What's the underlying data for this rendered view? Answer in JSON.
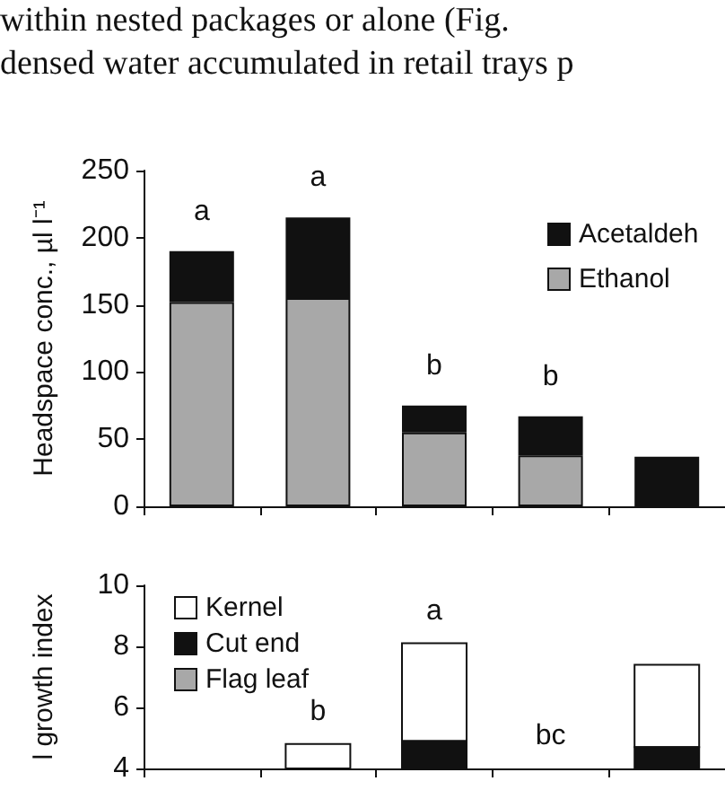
{
  "chart_data": [
    {
      "type": "bar",
      "stacked": true,
      "ylabel": "Headspace conc., µl l⁻¹",
      "categories": [
        null,
        null,
        null,
        null,
        null
      ],
      "ylim": [
        0,
        250
      ],
      "yticks": [
        0,
        50,
        100,
        150,
        200,
        250
      ],
      "tick_labels": "y",
      "grid": false,
      "legend": "top right",
      "annotations": [
        "within nested packages or alone (Fig.",
        "densed water accumulated in retail trays p"
      ],
      "series": [
        {
          "name": "Ethanol",
          "color": "#a8a8a8",
          "values": [
            152,
            155,
            55,
            38,
            null
          ]
        },
        {
          "name": "Acetaldeh",
          "color": "#111111",
          "values": [
            38,
            60,
            20,
            29,
            37
          ],
          "value_labels": [
            "a",
            "a",
            "b",
            "b",
            null
          ]
        }
      ]
    },
    {
      "type": "bar",
      "ylabel": "l growth index",
      "categories": [
        null,
        null,
        null,
        null,
        null
      ],
      "ylim": [
        4,
        10
      ],
      "yticks": [
        4,
        6,
        8,
        10
      ],
      "tick_labels": "y",
      "grid": false,
      "legend": "top left",
      "series": [
        {
          "name": "Kernel",
          "color": "#ffffff",
          "base": [
            null,
            4,
            4.9,
            null,
            4.7
          ],
          "values": [
            null,
            0.8,
            3.2,
            null,
            2.7
          ],
          "value_labels": [
            null,
            "b",
            "a",
            "bc",
            null
          ]
        },
        {
          "name": "Cut end",
          "color": "#111111",
          "base": [
            null,
            null,
            4,
            null,
            4
          ],
          "values": [
            null,
            null,
            0.9,
            null,
            0.7
          ]
        },
        {
          "name": "Flag leaf",
          "color": "#a8a8a8",
          "values": [
            null,
            null,
            null,
            null,
            null
          ]
        }
      ]
    }
  ]
}
